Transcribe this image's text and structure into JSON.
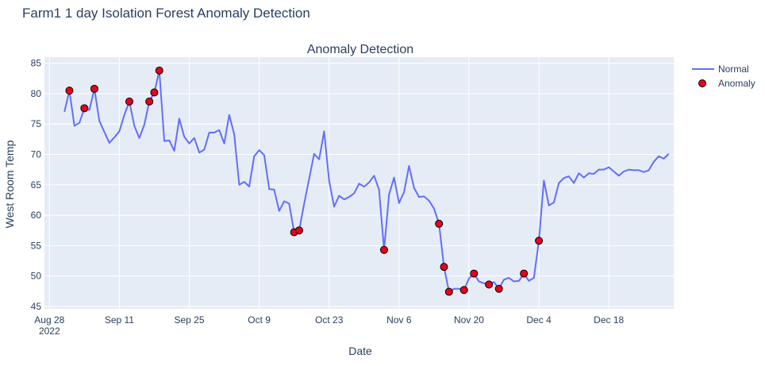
{
  "page_title": "Farm1 1 day Isolation Forest Anomaly Detection",
  "chart_data": {
    "type": "line",
    "title": "Anomaly Detection",
    "xlabel": "Date",
    "ylabel": "West Room Temp",
    "ylim": [
      44.6,
      86.0
    ],
    "xlim": [
      "2022-08-27",
      "2022-12-31"
    ],
    "x_ticks": [
      {
        "date": "2022-08-28",
        "label": "Aug 28",
        "sublabel": "2022"
      },
      {
        "date": "2022-09-11",
        "label": "Sep 11",
        "sublabel": ""
      },
      {
        "date": "2022-09-25",
        "label": "Sep 25",
        "sublabel": ""
      },
      {
        "date": "2022-10-09",
        "label": "Oct 9",
        "sublabel": ""
      },
      {
        "date": "2022-10-23",
        "label": "Oct 23",
        "sublabel": ""
      },
      {
        "date": "2022-11-06",
        "label": "Nov 6",
        "sublabel": ""
      },
      {
        "date": "2022-11-20",
        "label": "Nov 20",
        "sublabel": ""
      },
      {
        "date": "2022-12-04",
        "label": "Dec 4",
        "sublabel": ""
      },
      {
        "date": "2022-12-18",
        "label": "Dec 18",
        "sublabel": ""
      }
    ],
    "y_ticks": [
      45,
      50,
      55,
      60,
      65,
      70,
      75,
      80,
      85
    ],
    "legend": {
      "position": "top-right",
      "entries": [
        "Normal",
        "Anomaly"
      ]
    },
    "grid": true,
    "colors": {
      "normal": "#636efa",
      "anomaly": "#e8001c",
      "plot_bg": "#e5ecf6",
      "grid": "#ffffff",
      "text": "#2a3f5f"
    },
    "series": [
      {
        "name": "Normal",
        "type": "line",
        "points": [
          [
            "2022-08-31",
            77.0
          ],
          [
            "2022-09-01",
            80.5
          ],
          [
            "2022-09-02",
            74.7
          ],
          [
            "2022-09-03",
            75.2
          ],
          [
            "2022-09-04",
            77.6
          ],
          [
            "2022-09-05",
            77.3
          ],
          [
            "2022-09-06",
            80.8
          ],
          [
            "2022-09-07",
            75.5
          ],
          [
            "2022-09-08",
            73.7
          ],
          [
            "2022-09-09",
            71.9
          ],
          [
            "2022-09-10",
            72.8
          ],
          [
            "2022-09-11",
            73.8
          ],
          [
            "2022-09-12",
            76.5
          ],
          [
            "2022-09-13",
            78.7
          ],
          [
            "2022-09-14",
            74.7
          ],
          [
            "2022-09-15",
            72.7
          ],
          [
            "2022-09-16",
            74.9
          ],
          [
            "2022-09-17",
            78.7
          ],
          [
            "2022-09-18",
            80.2
          ],
          [
            "2022-09-19",
            83.8
          ],
          [
            "2022-09-20",
            72.2
          ],
          [
            "2022-09-21",
            72.3
          ],
          [
            "2022-09-22",
            70.6
          ],
          [
            "2022-09-23",
            75.9
          ],
          [
            "2022-09-24",
            72.9
          ],
          [
            "2022-09-25",
            71.8
          ],
          [
            "2022-09-26",
            72.7
          ],
          [
            "2022-09-27",
            70.3
          ],
          [
            "2022-09-28",
            70.8
          ],
          [
            "2022-09-29",
            73.6
          ],
          [
            "2022-09-30",
            73.6
          ],
          [
            "2022-10-01",
            74.0
          ],
          [
            "2022-10-02",
            71.8
          ],
          [
            "2022-10-03",
            76.5
          ],
          [
            "2022-10-04",
            73.3
          ],
          [
            "2022-10-05",
            65.0
          ],
          [
            "2022-10-06",
            65.5
          ],
          [
            "2022-10-07",
            64.7
          ],
          [
            "2022-10-08",
            69.7
          ],
          [
            "2022-10-09",
            70.7
          ],
          [
            "2022-10-10",
            69.9
          ],
          [
            "2022-10-11",
            64.3
          ],
          [
            "2022-10-12",
            64.2
          ],
          [
            "2022-10-13",
            60.7
          ],
          [
            "2022-10-14",
            62.3
          ],
          [
            "2022-10-15",
            61.9
          ],
          [
            "2022-10-16",
            57.2
          ],
          [
            "2022-10-17",
            57.5
          ],
          [
            "2022-10-18",
            61.9
          ],
          [
            "2022-10-19",
            66.0
          ],
          [
            "2022-10-20",
            70.1
          ],
          [
            "2022-10-21",
            69.2
          ],
          [
            "2022-10-22",
            73.8
          ],
          [
            "2022-10-23",
            65.7
          ],
          [
            "2022-10-24",
            61.4
          ],
          [
            "2022-10-25",
            63.2
          ],
          [
            "2022-10-26",
            62.6
          ],
          [
            "2022-10-27",
            63.0
          ],
          [
            "2022-10-28",
            63.6
          ],
          [
            "2022-10-29",
            65.2
          ],
          [
            "2022-10-30",
            64.7
          ],
          [
            "2022-10-31",
            65.4
          ],
          [
            "2022-11-01",
            66.5
          ],
          [
            "2022-11-02",
            64.2
          ],
          [
            "2022-11-03",
            54.3
          ],
          [
            "2022-11-04",
            63.4
          ],
          [
            "2022-11-05",
            66.2
          ],
          [
            "2022-11-06",
            62.0
          ],
          [
            "2022-11-07",
            63.8
          ],
          [
            "2022-11-08",
            68.1
          ],
          [
            "2022-11-09",
            64.5
          ],
          [
            "2022-11-10",
            63.0
          ],
          [
            "2022-11-11",
            63.1
          ],
          [
            "2022-11-12",
            62.4
          ],
          [
            "2022-11-13",
            61.1
          ],
          [
            "2022-11-14",
            58.6
          ],
          [
            "2022-11-15",
            51.5
          ],
          [
            "2022-11-16",
            47.4
          ],
          [
            "2022-11-17",
            47.9
          ],
          [
            "2022-11-18",
            47.9
          ],
          [
            "2022-11-19",
            47.7
          ],
          [
            "2022-11-20",
            49.6
          ],
          [
            "2022-11-21",
            50.4
          ],
          [
            "2022-11-22",
            49.1
          ],
          [
            "2022-11-23",
            48.8
          ],
          [
            "2022-11-24",
            48.6
          ],
          [
            "2022-11-25",
            49.0
          ],
          [
            "2022-11-26",
            47.9
          ],
          [
            "2022-11-27",
            49.4
          ],
          [
            "2022-11-28",
            49.7
          ],
          [
            "2022-11-29",
            49.1
          ],
          [
            "2022-11-30",
            49.2
          ],
          [
            "2022-12-01",
            50.4
          ],
          [
            "2022-12-02",
            49.2
          ],
          [
            "2022-12-03",
            49.7
          ],
          [
            "2022-12-04",
            55.8
          ],
          [
            "2022-12-05",
            65.7
          ],
          [
            "2022-12-06",
            61.6
          ],
          [
            "2022-12-07",
            62.1
          ],
          [
            "2022-12-08",
            65.3
          ],
          [
            "2022-12-09",
            66.1
          ],
          [
            "2022-12-10",
            66.4
          ],
          [
            "2022-12-11",
            65.3
          ],
          [
            "2022-12-12",
            66.9
          ],
          [
            "2022-12-13",
            66.2
          ],
          [
            "2022-12-14",
            66.9
          ],
          [
            "2022-12-15",
            66.8
          ],
          [
            "2022-12-16",
            67.5
          ],
          [
            "2022-12-17",
            67.5
          ],
          [
            "2022-12-18",
            67.9
          ],
          [
            "2022-12-19",
            67.2
          ],
          [
            "2022-12-20",
            66.5
          ],
          [
            "2022-12-21",
            67.2
          ],
          [
            "2022-12-22",
            67.5
          ],
          [
            "2022-12-23",
            67.4
          ],
          [
            "2022-12-24",
            67.4
          ],
          [
            "2022-12-25",
            67.1
          ],
          [
            "2022-12-26",
            67.4
          ],
          [
            "2022-12-27",
            68.8
          ],
          [
            "2022-12-28",
            69.7
          ],
          [
            "2022-12-29",
            69.3
          ],
          [
            "2022-12-30",
            70.1
          ]
        ]
      },
      {
        "name": "Anomaly",
        "type": "scatter",
        "points": [
          [
            "2022-09-01",
            80.5
          ],
          [
            "2022-09-04",
            77.6
          ],
          [
            "2022-09-06",
            80.8
          ],
          [
            "2022-09-13",
            78.7
          ],
          [
            "2022-09-17",
            78.7
          ],
          [
            "2022-09-18",
            80.2
          ],
          [
            "2022-09-19",
            83.8
          ],
          [
            "2022-10-16",
            57.2
          ],
          [
            "2022-10-17",
            57.5
          ],
          [
            "2022-11-03",
            54.3
          ],
          [
            "2022-11-14",
            58.6
          ],
          [
            "2022-11-15",
            51.5
          ],
          [
            "2022-11-16",
            47.4
          ],
          [
            "2022-11-19",
            47.7
          ],
          [
            "2022-11-21",
            50.4
          ],
          [
            "2022-11-24",
            48.6
          ],
          [
            "2022-11-26",
            47.9
          ],
          [
            "2022-12-01",
            50.4
          ],
          [
            "2022-12-04",
            55.8
          ]
        ]
      }
    ]
  }
}
